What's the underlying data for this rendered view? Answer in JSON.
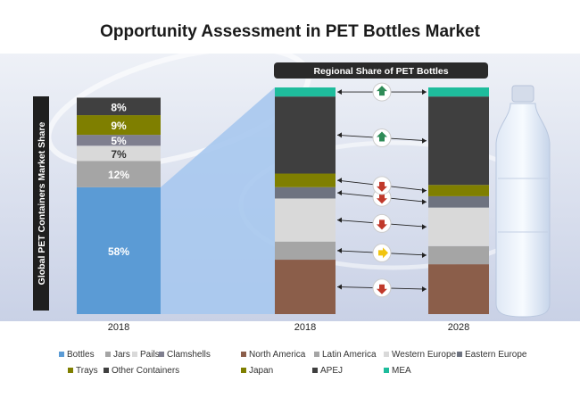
{
  "title": "Opportunity Assessment in PET Bottles Market",
  "colors": {
    "bottles": "#5b9bd5",
    "jars": "#a5a5a5",
    "pails": "#d9d9d9",
    "clamshells": "#7f7f8f",
    "trays": "#7f7f00",
    "other_containers": "#404040",
    "north_america": "#8b5e4a",
    "latin_america": "#a5a5a5",
    "western_europe": "#d9d9d9",
    "eastern_europe": "#6e7380",
    "japan": "#7f7f00",
    "apej": "#3f3f3f",
    "mea": "#1ebc9c",
    "arrow_up": "#2e8b57",
    "arrow_down": "#c0392b",
    "arrow_neutral": "#f1c40f"
  },
  "chart_data": [
    {
      "type": "bar",
      "stacked": true,
      "ylabel": "Global PET Containers Market Share",
      "categories": [
        "2018"
      ],
      "ylim": [
        0,
        100
      ],
      "series": [
        {
          "name": "Bottles",
          "key": "bottles",
          "values": [
            58
          ],
          "label": "58%"
        },
        {
          "name": "Jars",
          "key": "jars",
          "values": [
            12
          ],
          "label": "12%"
        },
        {
          "name": "Pails",
          "key": "pails",
          "values": [
            7
          ],
          "label": "7%"
        },
        {
          "name": "Clamshells",
          "key": "clamshells",
          "values": [
            5
          ],
          "label": "5%"
        },
        {
          "name": "Trays",
          "key": "trays",
          "values": [
            9
          ],
          "label": "9%"
        },
        {
          "name": "Other Containers",
          "key": "other_containers",
          "values": [
            8
          ],
          "label": "8%"
        }
      ]
    },
    {
      "type": "bar",
      "stacked": true,
      "title": "Regional Share of PET Bottles",
      "categories": [
        "2018",
        "2028"
      ],
      "ylim": [
        0,
        100
      ],
      "series": [
        {
          "name": "North America",
          "key": "north_america",
          "values": [
            24,
            22
          ],
          "trend": "down"
        },
        {
          "name": "Latin America",
          "key": "latin_america",
          "values": [
            8,
            8
          ],
          "trend": "neutral"
        },
        {
          "name": "Western Europe",
          "key": "western_europe",
          "values": [
            19,
            17
          ],
          "trend": "down"
        },
        {
          "name": "Eastern Europe",
          "key": "eastern_europe",
          "values": [
            5,
            5
          ],
          "trend": "down"
        },
        {
          "name": "Japan",
          "key": "japan",
          "values": [
            6,
            5
          ],
          "trend": "down"
        },
        {
          "name": "APEJ",
          "key": "apej",
          "values": [
            34,
            39
          ],
          "trend": "up"
        },
        {
          "name": "MEA",
          "key": "mea",
          "values": [
            4,
            4
          ],
          "trend": "up"
        }
      ]
    }
  ],
  "legend": [
    {
      "label": "Bottles",
      "key": "bottles"
    },
    {
      "label": "Jars",
      "key": "jars"
    },
    {
      "label": "Pails",
      "key": "pails"
    },
    {
      "label": "Clamshells",
      "key": "clamshells"
    },
    {
      "label": "Trays",
      "key": "trays"
    },
    {
      "label": "Other Containers",
      "key": "other_containers"
    },
    {
      "label": "North America",
      "key": "north_america"
    },
    {
      "label": "Latin America",
      "key": "latin_america"
    },
    {
      "label": "Western Europe",
      "key": "western_europe"
    },
    {
      "label": "Eastern Europe",
      "key": "eastern_europe"
    },
    {
      "label": "Japan",
      "key": "japan"
    },
    {
      "label": "APEJ",
      "key": "apej"
    },
    {
      "label": "MEA",
      "key": "mea"
    }
  ],
  "decor": {
    "background_image": "pet-bottle-photo",
    "bottle_image": "water-bottle-icon"
  }
}
